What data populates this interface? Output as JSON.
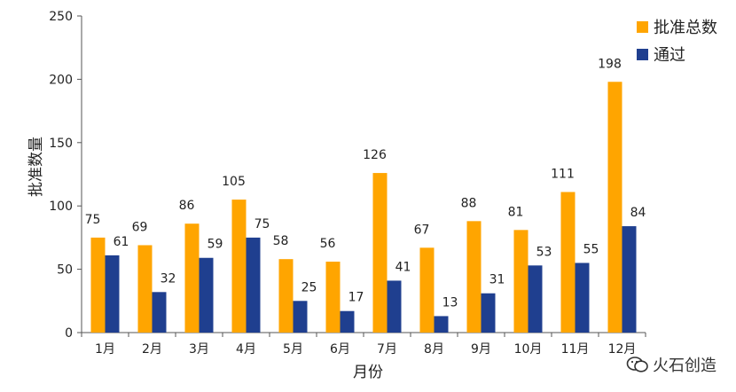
{
  "chart_data": {
    "type": "bar",
    "categories": [
      "1月",
      "2月",
      "3月",
      "4月",
      "5月",
      "6月",
      "7月",
      "8月",
      "9月",
      "10月",
      "11月",
      "12月"
    ],
    "series": [
      {
        "name": "批准总数",
        "color": "#FFA500",
        "values": [
          75,
          69,
          86,
          105,
          58,
          56,
          126,
          67,
          88,
          81,
          111,
          198
        ]
      },
      {
        "name": "通过",
        "color": "#1F3F8F",
        "values": [
          61,
          32,
          59,
          75,
          25,
          17,
          41,
          13,
          31,
          53,
          55,
          84
        ]
      }
    ],
    "xlabel": "月份",
    "ylabel": "批准数量",
    "ylim": [
      0,
      250
    ],
    "yticks": [
      0,
      50,
      100,
      150,
      200,
      250
    ],
    "grid": false,
    "legend_position": "top-right"
  },
  "watermark": {
    "text": "火石创造",
    "icon": "wechat-icon"
  }
}
